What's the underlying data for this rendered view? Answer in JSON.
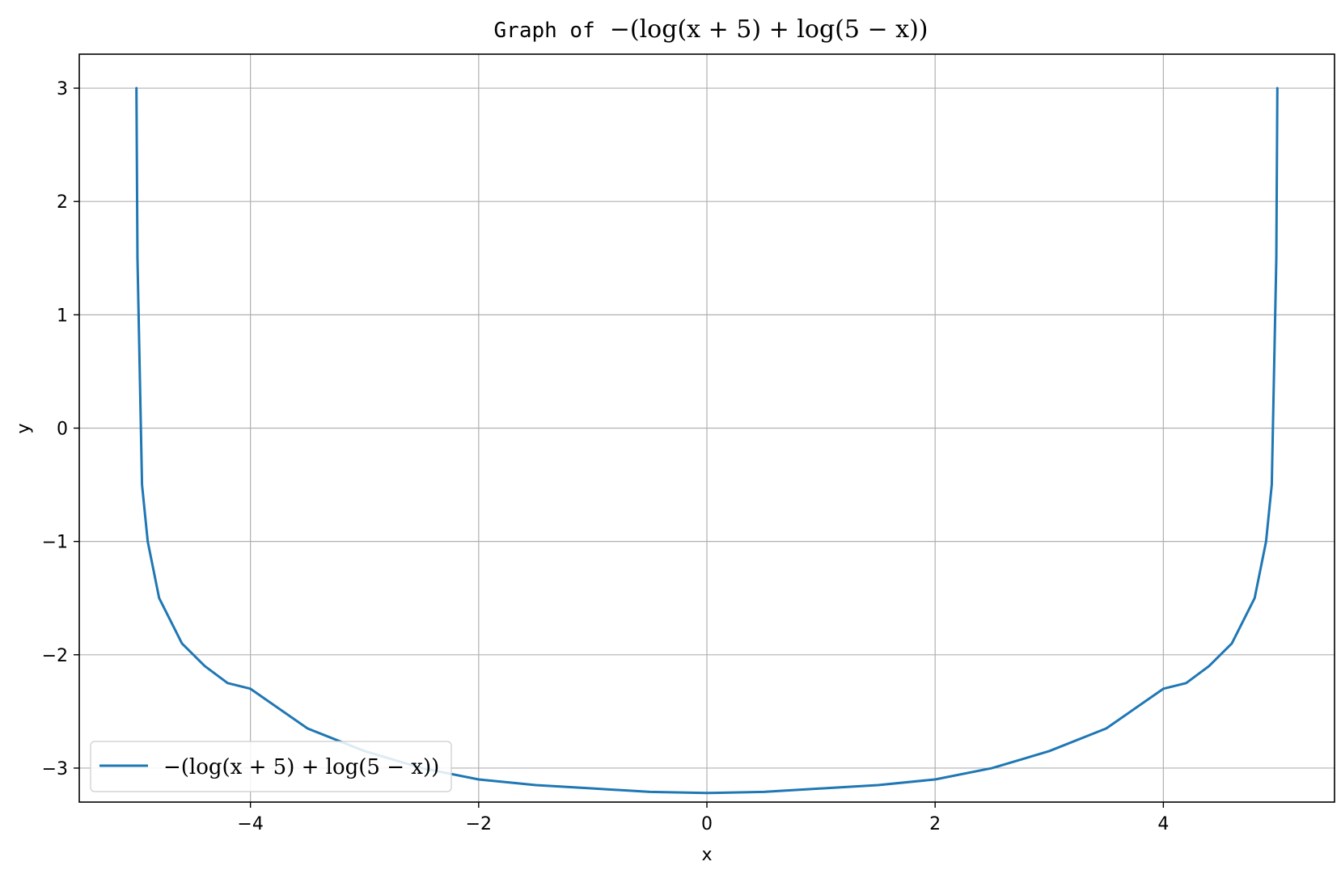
{
  "chart_data": {
    "type": "line",
    "title_prefix": "Graph of",
    "title_math": "−(log(x + 5) + log(5 − x))",
    "xlabel": "x",
    "ylabel": "y",
    "xlim": [
      -5.5,
      5.5
    ],
    "ylim": [
      -3.3,
      3.3
    ],
    "xticks": [
      -4,
      -2,
      0,
      2,
      4
    ],
    "yticks": [
      -3,
      -2,
      -1,
      0,
      1,
      2,
      3
    ],
    "xtick_labels": [
      "−4",
      "−2",
      "0",
      "2",
      "4"
    ],
    "ytick_labels": [
      "−3",
      "−2",
      "−1",
      "0",
      "1",
      "2",
      "3"
    ],
    "grid": true,
    "legend_position": "lower-left",
    "series": [
      {
        "name": "−(log(x + 5) + log(5 − x))",
        "color": "#1f77b4",
        "x": [
          -4.999,
          -4.99,
          -4.95,
          -4.9,
          -4.8,
          -4.6,
          -4.4,
          -4.2,
          -4.0,
          -3.5,
          -3.0,
          -2.5,
          -2.0,
          -1.5,
          -1.0,
          -0.5,
          0.0,
          0.5,
          1.0,
          1.5,
          2.0,
          2.5,
          3.0,
          3.5,
          4.0,
          4.2,
          4.4,
          4.6,
          4.8,
          4.9,
          4.95,
          4.99,
          4.999
        ],
        "y": [
          3.0,
          1.5,
          -0.5,
          -1.0,
          -1.5,
          -1.9,
          -2.1,
          -2.25,
          -2.3,
          -2.65,
          -2.85,
          -3.0,
          -3.1,
          -3.15,
          -3.18,
          -3.21,
          -3.22,
          -3.21,
          -3.18,
          -3.15,
          -3.1,
          -3.0,
          -2.85,
          -2.65,
          -2.3,
          -2.25,
          -2.1,
          -1.9,
          -1.5,
          -1.0,
          -0.5,
          1.5,
          3.0
        ]
      }
    ]
  }
}
